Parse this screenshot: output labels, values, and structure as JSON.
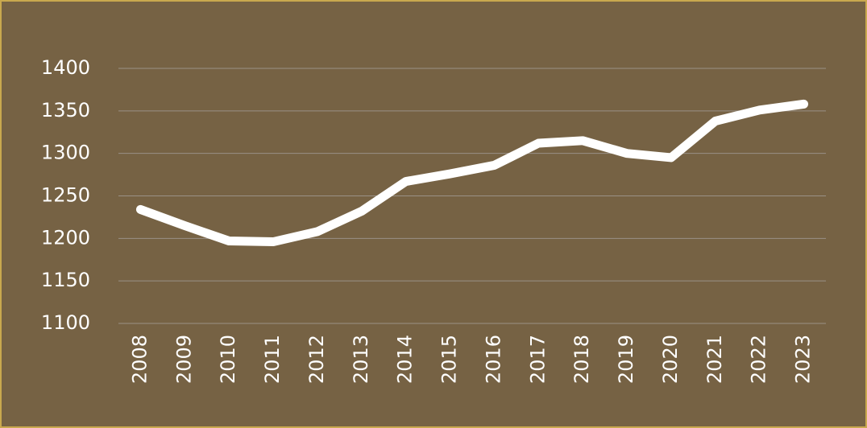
{
  "chart_data": {
    "type": "line",
    "categories": [
      "2008",
      "2009",
      "2010",
      "2011",
      "2012",
      "2013",
      "2014",
      "2015",
      "2016",
      "2017",
      "2018",
      "2019",
      "2020",
      "2021",
      "2022",
      "2023"
    ],
    "values": [
      1234,
      1215,
      1197,
      1196,
      1208,
      1232,
      1267,
      1276,
      1286,
      1312,
      1315,
      1300,
      1295,
      1338,
      1351,
      1358
    ],
    "color": "#ffffff",
    "ylim": [
      1100,
      1400
    ],
    "yticks": [
      1100,
      1150,
      1200,
      1250,
      1300,
      1350,
      1400
    ],
    "grid": true
  }
}
